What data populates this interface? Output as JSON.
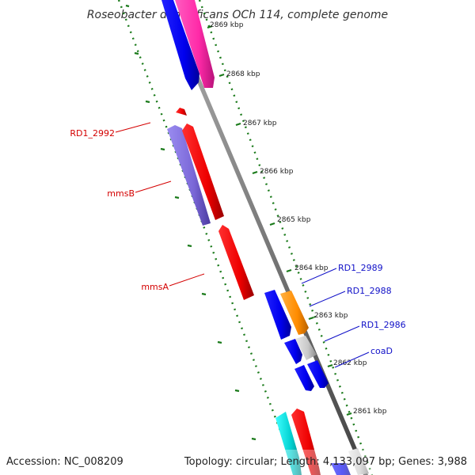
{
  "title": "Roseobacter denitrificans OCh 114, complete genome",
  "footer": {
    "accession": "Accession: NC_008209",
    "summary": "Topology: circular; Length: 4,133,097 bp; Genes: 3,988"
  },
  "ticks": [
    {
      "id": "t2869",
      "label": "2869 kbp"
    },
    {
      "id": "t2868",
      "label": "2868 kbp"
    },
    {
      "id": "t2867",
      "label": "2867 kbp"
    },
    {
      "id": "t2866",
      "label": "2866 kbp"
    },
    {
      "id": "t2865",
      "label": "2865 kbp"
    },
    {
      "id": "t2864",
      "label": "2864 kbp"
    },
    {
      "id": "t2863",
      "label": "2863 kbp"
    },
    {
      "id": "t2862",
      "label": "2862 kbp"
    },
    {
      "id": "t2861",
      "label": "2861 kbp"
    }
  ],
  "genes": {
    "rd1_2992": "RD1_2992",
    "mmsb": "mmsB",
    "mmsa": "mmsA",
    "rd1_2989": "RD1_2989",
    "rd1_2988": "RD1_2988",
    "rd1_2986": "RD1_2986",
    "coad": "coaD"
  },
  "colors": {
    "backbone": "#808080",
    "dotted_track": "#1a7a1a",
    "minus_label": "#d40000",
    "plus_label": "#1010c8",
    "blue": "#0000ee",
    "magenta": "#ff2aa8",
    "red": "#ff0000",
    "purple": "#7b68d8",
    "orange": "#ff8c00",
    "gray": "#c8c8c8",
    "cyan": "#00cccc"
  }
}
